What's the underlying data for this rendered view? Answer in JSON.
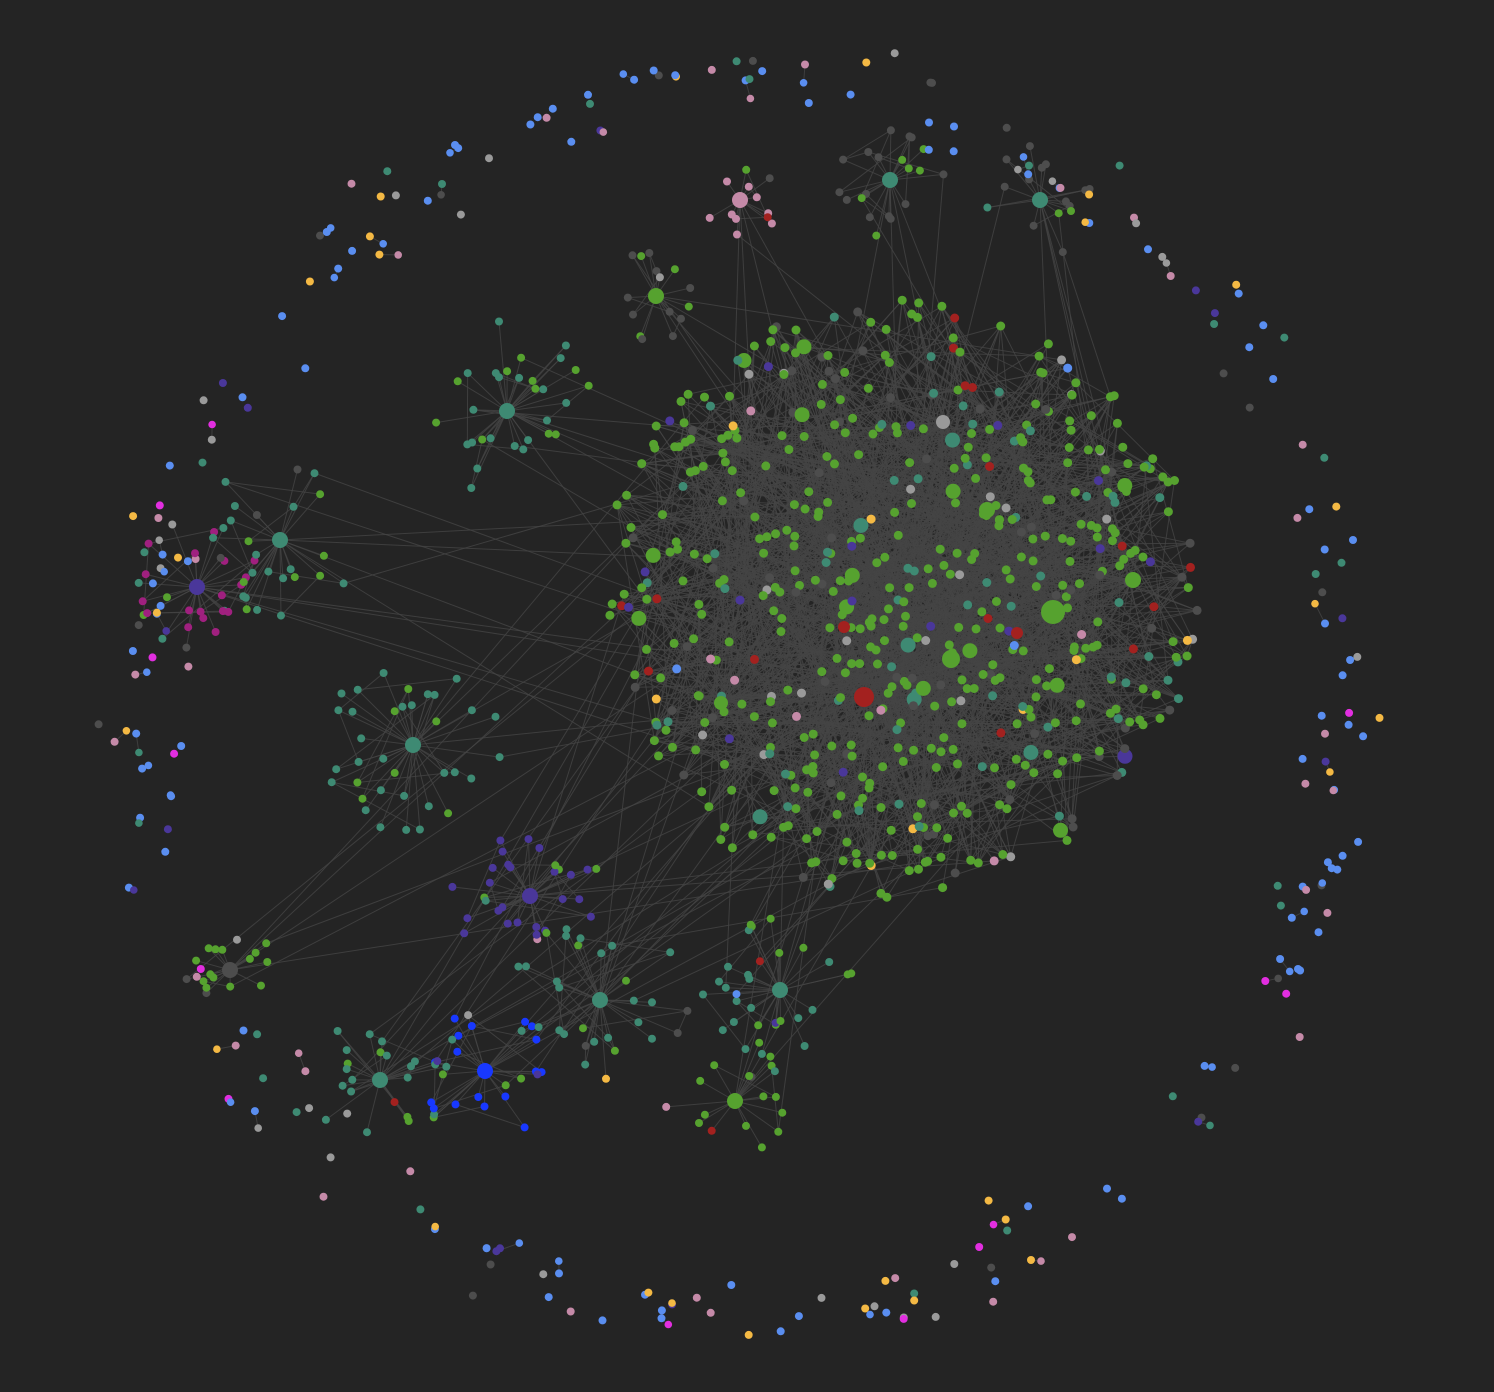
{
  "graph_view": {
    "background": "#242424",
    "edge_color": "#454545",
    "node_groups": {
      "green": "#56a22f",
      "teal": "#3e8a73",
      "red": "#a3211f",
      "purple": "#4a379a",
      "blue": "#5a8ef0",
      "bright_blue": "#1838ff",
      "gray": "#9a9a9a",
      "dark_gray": "#4d4d4d",
      "pink": "#c58aa8",
      "yellow": "#f4b944",
      "magenta": "#a0207f",
      "hot_pink": "#e22ee0",
      "tan": "#b58888",
      "violet": "#7a55e8"
    }
  }
}
